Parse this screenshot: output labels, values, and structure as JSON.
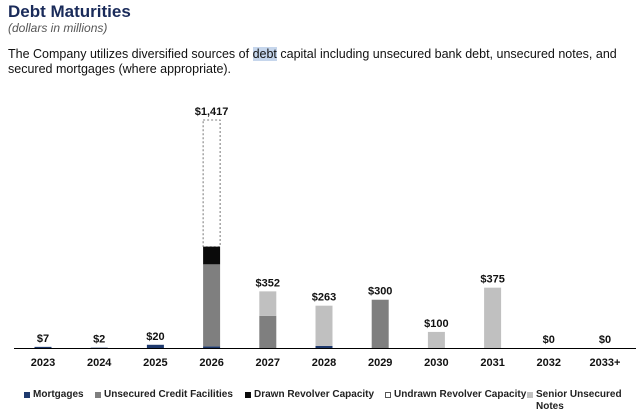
{
  "header": {
    "title": "Debt Maturities",
    "subtitle": "(dollars in millions)",
    "description_pre": "The Company utilizes diversified sources of ",
    "description_highlight": "debt",
    "description_post": " capital including unsecured bank debt, unsecured notes, and secured mortgages (where appropriate)."
  },
  "chart_data": {
    "type": "bar",
    "stacked": true,
    "title": "Debt Maturities",
    "xlabel": "",
    "ylabel": "",
    "ylim": [
      0,
      1500
    ],
    "categories": [
      "2023",
      "2024",
      "2025",
      "2026",
      "2027",
      "2028",
      "2029",
      "2030",
      "2031",
      "2032",
      "2033+"
    ],
    "totals": [
      "$7",
      "$2",
      "$20",
      "$1,417",
      "$352",
      "$263",
      "$300",
      "$100",
      "$375",
      "$0",
      "$0"
    ],
    "series": [
      {
        "name": "Mortgages",
        "color": "#1f3a6e",
        "values": [
          7,
          2,
          20,
          10,
          0,
          13,
          0,
          0,
          0,
          0,
          0
        ]
      },
      {
        "name": "Unsecured Credit Facilities",
        "color": "#7f7f7f",
        "values": [
          0,
          0,
          0,
          510,
          200,
          0,
          300,
          0,
          0,
          0,
          0
        ]
      },
      {
        "name": "Drawn Revolver Capacity",
        "color": "#0a0a0a",
        "values": [
          0,
          0,
          0,
          110,
          0,
          0,
          0,
          0,
          0,
          0,
          0
        ]
      },
      {
        "name": "Undrawn Revolver Capacity",
        "color": "#ffffff",
        "values": [
          0,
          0,
          0,
          787,
          0,
          0,
          0,
          0,
          0,
          0,
          0
        ]
      },
      {
        "name": "Senior Unsecured Notes",
        "color": "#c0c0c0",
        "values": [
          0,
          0,
          0,
          0,
          152,
          250,
          0,
          100,
          375,
          0,
          0
        ]
      }
    ],
    "legend_position": "bottom",
    "grid": false
  }
}
